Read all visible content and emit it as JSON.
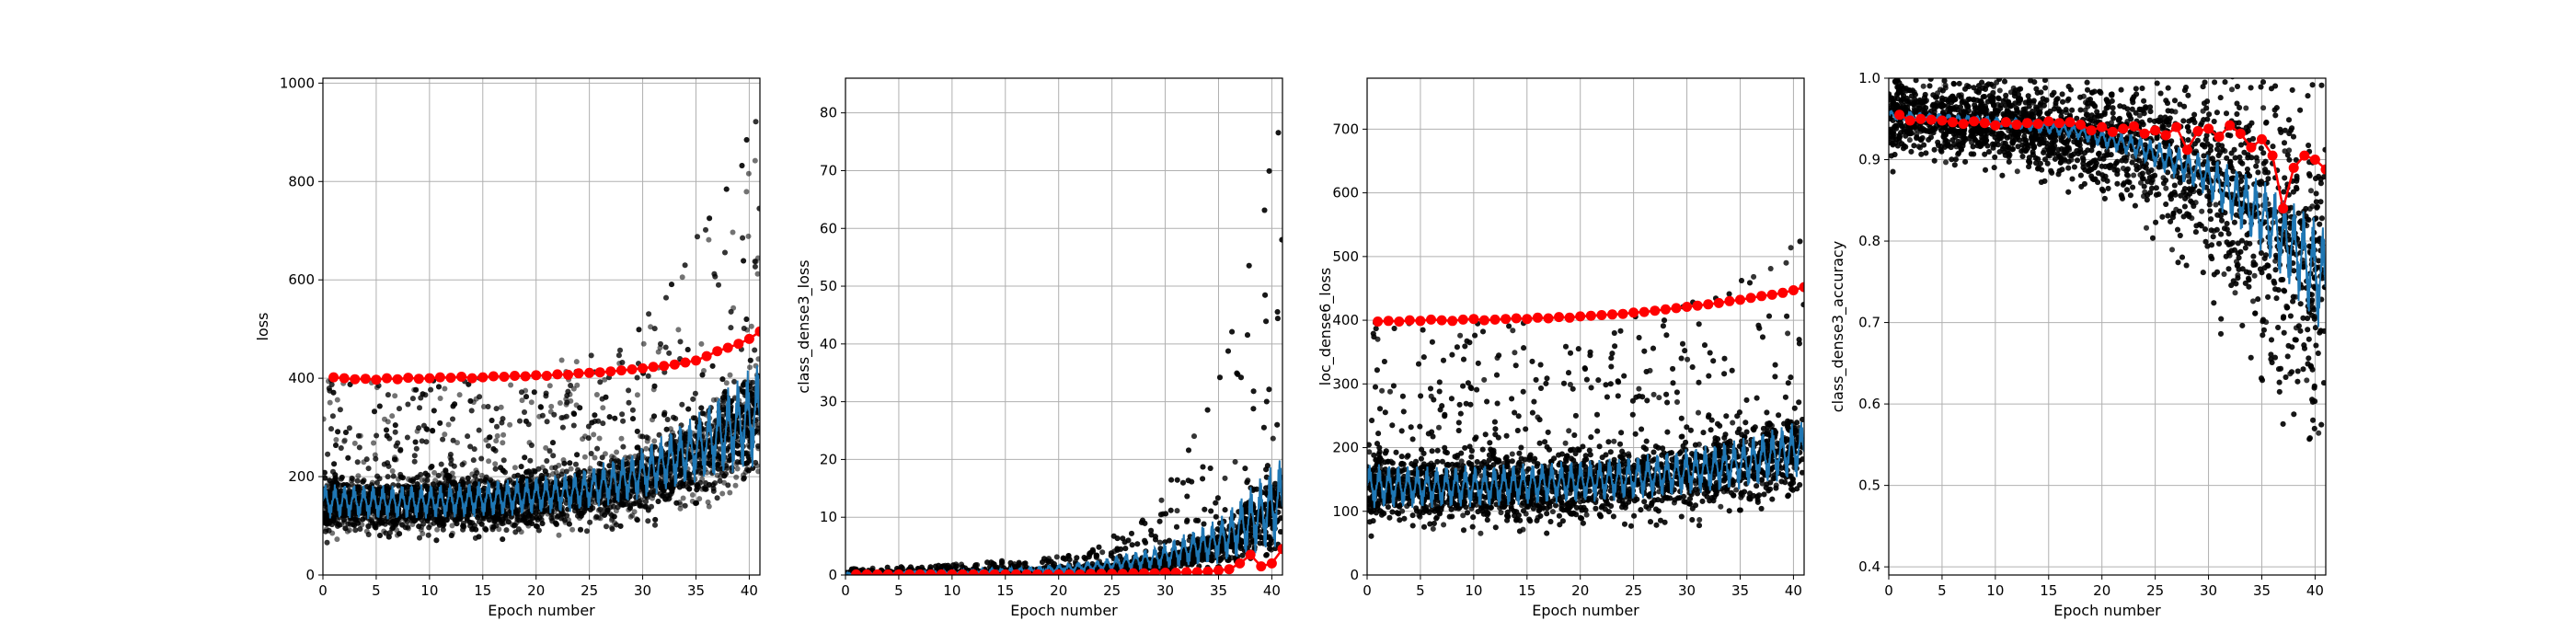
{
  "colors": {
    "batch_points": "#000000",
    "batch_line": "#1f77b4",
    "epoch_points": "#ff0000",
    "grid": "#b0b0b0"
  },
  "chart_data": [
    {
      "type": "scatter",
      "xlabel": "Epoch number",
      "ylabel": "loss",
      "xlim": [
        0,
        41
      ],
      "ylim": [
        0,
        1010
      ],
      "xticks": [
        0,
        5,
        10,
        15,
        20,
        25,
        30,
        35,
        40
      ],
      "yticks": [
        0,
        200,
        400,
        600,
        800,
        1000
      ],
      "grid": true,
      "series": [
        {
          "kind": "batch_scatter",
          "x_range": [
            0,
            41
          ],
          "center": [
            140,
            140,
            145,
            150,
            160,
            185,
            240,
            330
          ],
          "spread_low": [
            60,
            60,
            60,
            65,
            70,
            80,
            110,
            150
          ],
          "spread_high": [
            400,
            400,
            400,
            420,
            450,
            500,
            700,
            960
          ]
        },
        {
          "kind": "batch_line",
          "x_range": [
            0,
            41
          ],
          "mean": [
            150,
            148,
            150,
            158,
            168,
            200,
            260,
            330
          ],
          "amplitude": [
            35,
            35,
            35,
            38,
            40,
            50,
            70,
            110
          ]
        },
        {
          "kind": "epoch_points",
          "x": [
            1,
            2,
            3,
            4,
            5,
            6,
            7,
            8,
            9,
            10,
            11,
            12,
            13,
            14,
            15,
            16,
            17,
            18,
            19,
            20,
            21,
            22,
            23,
            24,
            25,
            26,
            27,
            28,
            29,
            30,
            31,
            32,
            33,
            34,
            35,
            36,
            37,
            38,
            39,
            40,
            41
          ],
          "y": [
            402,
            400,
            398,
            399,
            397,
            400,
            398,
            401,
            399,
            400,
            402,
            401,
            403,
            400,
            402,
            404,
            403,
            405,
            404,
            406,
            405,
            408,
            407,
            410,
            411,
            412,
            414,
            416,
            418,
            420,
            423,
            425,
            428,
            432,
            436,
            445,
            455,
            462,
            470,
            480,
            495
          ]
        }
      ]
    },
    {
      "type": "scatter",
      "xlabel": "Epoch number",
      "ylabel": "class_dense3_loss",
      "xlim": [
        0,
        41
      ],
      "ylim": [
        0,
        86
      ],
      "xticks": [
        0,
        5,
        10,
        15,
        20,
        25,
        30,
        35,
        40
      ],
      "yticks": [
        0,
        10,
        20,
        30,
        40,
        50,
        60,
        70,
        80
      ],
      "grid": true,
      "series": [
        {
          "kind": "batch_scatter",
          "x_range": [
            0,
            41
          ],
          "center": [
            0.2,
            0.3,
            0.4,
            0.6,
            1.0,
            2.0,
            5.0,
            12.0
          ],
          "spread_low": [
            0,
            0,
            0,
            0,
            0,
            0,
            0,
            0
          ],
          "spread_high": [
            1,
            1.5,
            2,
            3,
            5,
            12,
            35,
            82
          ]
        },
        {
          "kind": "batch_line",
          "x_range": [
            0,
            41
          ],
          "mean": [
            0.2,
            0.3,
            0.5,
            0.8,
            1.5,
            3.0,
            6.0,
            13.0
          ],
          "amplitude": [
            0.2,
            0.3,
            0.4,
            0.6,
            1.0,
            2.0,
            4.0,
            8.0
          ]
        },
        {
          "kind": "epoch_points",
          "x": [
            1,
            2,
            3,
            4,
            5,
            6,
            7,
            8,
            9,
            10,
            11,
            12,
            13,
            14,
            15,
            16,
            17,
            18,
            19,
            20,
            21,
            22,
            23,
            24,
            25,
            26,
            27,
            28,
            29,
            30,
            31,
            32,
            33,
            34,
            35,
            36,
            37,
            38,
            39,
            40,
            41
          ],
          "y": [
            0.1,
            0.1,
            0.1,
            0.1,
            0.1,
            0.1,
            0.1,
            0.1,
            0.1,
            0.1,
            0.1,
            0.1,
            0.1,
            0.1,
            0.1,
            0.1,
            0.1,
            0.1,
            0.1,
            0.1,
            0.1,
            0.1,
            0.2,
            0.2,
            0.2,
            0.2,
            0.3,
            0.3,
            0.3,
            0.4,
            0.4,
            0.5,
            0.5,
            0.6,
            0.8,
            1.0,
            2.0,
            3.5,
            1.5,
            2.0,
            4.5
          ]
        }
      ]
    },
    {
      "type": "scatter",
      "xlabel": "Epoch number",
      "ylabel": "loc_dense6_loss",
      "xlim": [
        0,
        41
      ],
      "ylim": [
        0,
        780
      ],
      "xticks": [
        0,
        5,
        10,
        15,
        20,
        25,
        30,
        35,
        40
      ],
      "yticks": [
        0,
        100,
        200,
        300,
        400,
        500,
        600,
        700
      ],
      "grid": true,
      "series": [
        {
          "kind": "batch_scatter",
          "x_range": [
            0,
            41
          ],
          "center": [
            135,
            135,
            138,
            140,
            145,
            155,
            170,
            200
          ],
          "spread_low": [
            55,
            55,
            55,
            58,
            60,
            65,
            75,
            95
          ],
          "spread_high": [
            400,
            400,
            400,
            410,
            420,
            430,
            470,
            540
          ]
        },
        {
          "kind": "batch_line",
          "x_range": [
            0,
            41
          ],
          "mean": [
            140,
            138,
            140,
            145,
            150,
            160,
            175,
            200
          ],
          "amplitude": [
            35,
            33,
            33,
            33,
            34,
            36,
            40,
            45
          ]
        },
        {
          "kind": "epoch_points",
          "x": [
            1,
            2,
            3,
            4,
            5,
            6,
            7,
            8,
            9,
            10,
            11,
            12,
            13,
            14,
            15,
            16,
            17,
            18,
            19,
            20,
            21,
            22,
            23,
            24,
            25,
            26,
            27,
            28,
            29,
            30,
            31,
            32,
            33,
            34,
            35,
            36,
            37,
            38,
            39,
            40,
            41
          ],
          "y": [
            398,
            399,
            398,
            400,
            399,
            401,
            400,
            399,
            401,
            402,
            400,
            401,
            402,
            403,
            402,
            404,
            403,
            405,
            404,
            406,
            407,
            408,
            409,
            410,
            412,
            413,
            415,
            417,
            419,
            421,
            423,
            425,
            427,
            430,
            432,
            435,
            438,
            440,
            443,
            447,
            452
          ]
        }
      ]
    },
    {
      "type": "scatter",
      "xlabel": "Epoch number",
      "ylabel": "class_dense3_accuracy",
      "xlim": [
        0,
        41
      ],
      "ylim": [
        0.39,
        1.0
      ],
      "xticks": [
        0,
        5,
        10,
        15,
        20,
        25,
        30,
        35,
        40
      ],
      "yticks": [
        0.4,
        0.5,
        0.6,
        0.7,
        0.8,
        0.9,
        1.0
      ],
      "grid": true,
      "series": [
        {
          "kind": "batch_scatter",
          "x_range": [
            0,
            41
          ],
          "center": [
            0.95,
            0.945,
            0.94,
            0.93,
            0.91,
            0.88,
            0.82,
            0.74
          ],
          "spread_low": [
            0.88,
            0.88,
            0.87,
            0.85,
            0.8,
            0.72,
            0.55,
            0.42
          ],
          "spread_high": [
            1.0,
            1.0,
            1.0,
            1.0,
            1.0,
            1.0,
            1.0,
            1.0
          ]
        },
        {
          "kind": "batch_line",
          "x_range": [
            0,
            41
          ],
          "mean": [
            0.955,
            0.95,
            0.945,
            0.935,
            0.915,
            0.885,
            0.83,
            0.75
          ],
          "amplitude": [
            0.006,
            0.006,
            0.007,
            0.01,
            0.015,
            0.025,
            0.045,
            0.07
          ]
        },
        {
          "kind": "epoch_points",
          "x": [
            1,
            2,
            3,
            4,
            5,
            6,
            7,
            8,
            9,
            10,
            11,
            12,
            13,
            14,
            15,
            16,
            17,
            18,
            19,
            20,
            21,
            22,
            23,
            24,
            25,
            26,
            27,
            28,
            29,
            30,
            31,
            32,
            33,
            34,
            35,
            36,
            37,
            38,
            39,
            40,
            41
          ],
          "y": [
            0.955,
            0.948,
            0.95,
            0.949,
            0.948,
            0.946,
            0.944,
            0.947,
            0.945,
            0.942,
            0.946,
            0.943,
            0.945,
            0.944,
            0.947,
            0.945,
            0.946,
            0.943,
            0.936,
            0.94,
            0.934,
            0.938,
            0.941,
            0.932,
            0.936,
            0.93,
            0.94,
            0.912,
            0.935,
            0.938,
            0.928,
            0.942,
            0.932,
            0.915,
            0.925,
            0.905,
            0.84,
            0.89,
            0.905,
            0.9,
            0.888
          ]
        }
      ]
    }
  ]
}
